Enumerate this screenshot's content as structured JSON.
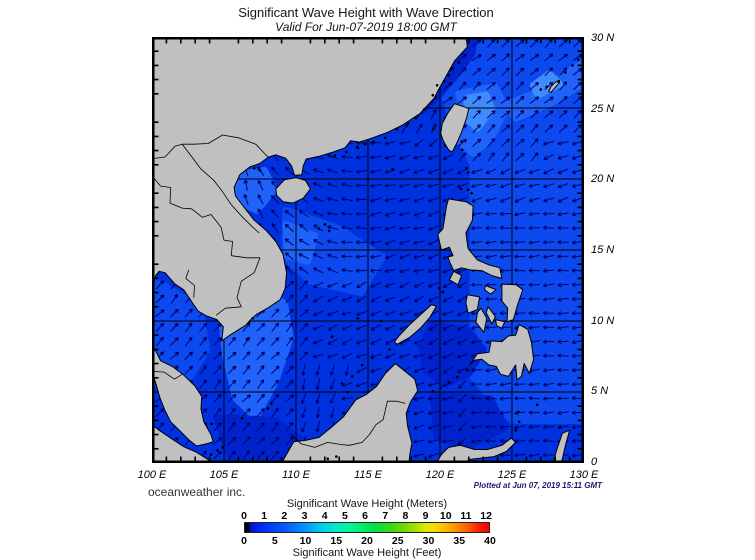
{
  "header": {
    "title": "Significant Wave Height with Wave Direction",
    "subtitle": "Valid For Jun-07-2019 18:00 GMT"
  },
  "axes": {
    "lon_labels": [
      "100 E",
      "105 E",
      "110 E",
      "115 E",
      "120 E",
      "125 E",
      "130 E"
    ],
    "lat_labels": [
      "30 N",
      "25 N",
      "20 N",
      "15 N",
      "10 N",
      "5 N",
      "0"
    ]
  },
  "footer": {
    "credit": "oceanweather inc.",
    "plotted": "Plotted at Jun 07, 2019 15:11 GMT"
  },
  "legend": {
    "title_meters": "Significant Wave Height (Meters)",
    "title_feet": "Significant Wave Height (Feet)",
    "meters_ticks": [
      "0",
      "1",
      "2",
      "3",
      "4",
      "5",
      "6",
      "7",
      "8",
      "9",
      "10",
      "11",
      "12"
    ],
    "feet_ticks": [
      "0",
      "5",
      "10",
      "15",
      "20",
      "25",
      "30",
      "35",
      "40"
    ],
    "meters_max": 12.192,
    "feet_max": 40,
    "gradient": [
      [
        0,
        "#000000"
      ],
      [
        1.2,
        "#000000"
      ],
      [
        2.5,
        "#0013d4"
      ],
      [
        8,
        "#0031ff"
      ],
      [
        16,
        "#0057ff"
      ],
      [
        24,
        "#0090ff"
      ],
      [
        31,
        "#00c8f0"
      ],
      [
        37,
        "#00e8c8"
      ],
      [
        42,
        "#00f89e"
      ],
      [
        47,
        "#00f070"
      ],
      [
        53,
        "#00e048"
      ],
      [
        59,
        "#30d818"
      ],
      [
        65,
        "#70d800"
      ],
      [
        70,
        "#a8e000"
      ],
      [
        74,
        "#e0e800"
      ],
      [
        78,
        "#f8d800"
      ],
      [
        83,
        "#ffb000"
      ],
      [
        88,
        "#ff8000"
      ],
      [
        93,
        "#ff4800"
      ],
      [
        97,
        "#ff1000"
      ],
      [
        100,
        "#f80000"
      ]
    ]
  },
  "map": {
    "extent": {
      "lon_min": 100,
      "lon_max": 130,
      "lat_min": 0,
      "lat_max": 30
    },
    "grid_interval_deg": 5,
    "tick_interval_deg": 1,
    "colors": {
      "land": "#c0c0c0",
      "coast": "#000000",
      "border": "#000000",
      "grid": "#000000",
      "frame": "#000000",
      "arrow": "#000066",
      "sea_base": "#0031df",
      "sea_deep": "#0023cd",
      "sea_mid": "#0c49ee",
      "sea_light": "#1f63fa",
      "sea_bright": "#3f8cff"
    }
  }
}
